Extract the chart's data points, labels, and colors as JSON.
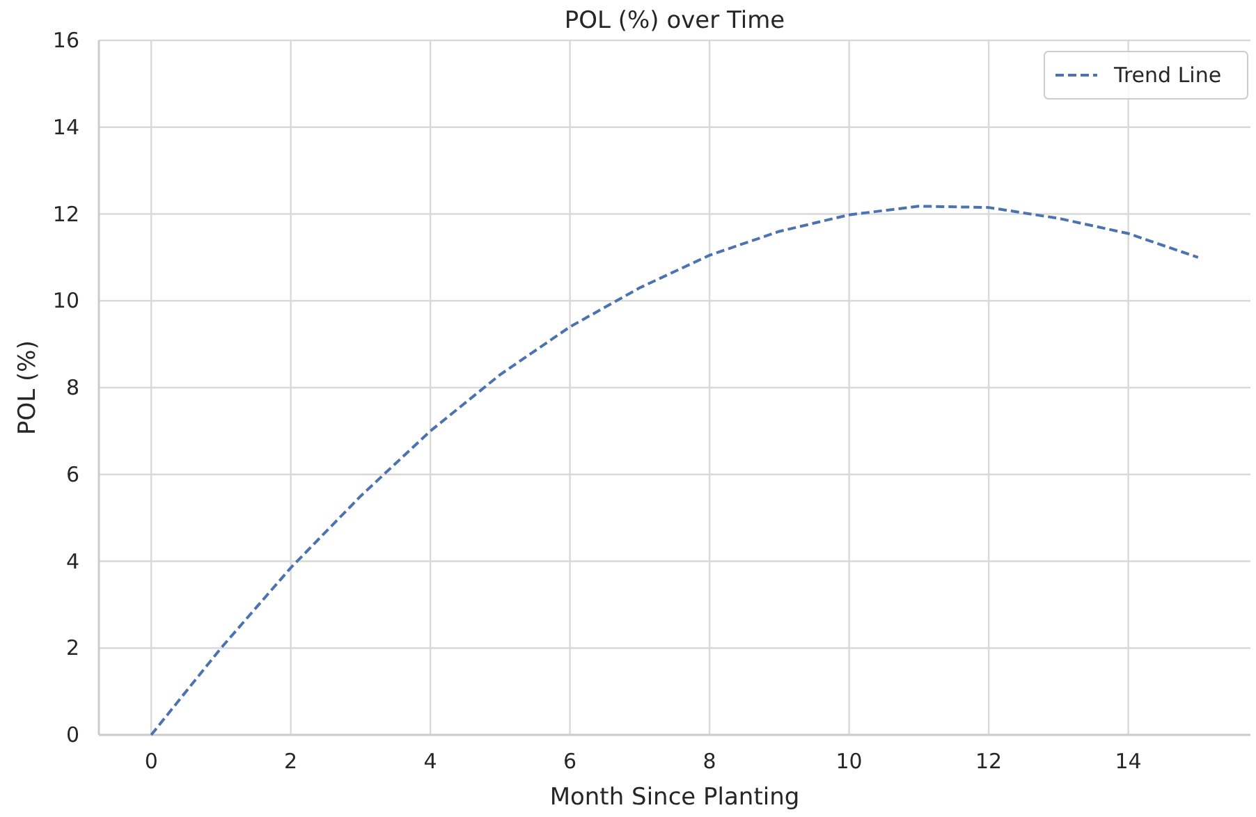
{
  "chart_data": {
    "type": "line",
    "title": "POL (%) over Time",
    "xlabel": "Month Since Planting",
    "ylabel": "POL (%)",
    "x": [
      0,
      1,
      2,
      3,
      4,
      5,
      6,
      7,
      8,
      9,
      10,
      11,
      12,
      13,
      14,
      15
    ],
    "series": [
      {
        "name": "Trend Line",
        "color": "#4c72b0",
        "line_style": "dashed",
        "values": [
          0,
          2.0,
          3.85,
          5.5,
          7.0,
          8.3,
          9.4,
          10.3,
          11.05,
          11.6,
          11.98,
          12.18,
          12.15,
          11.9,
          11.55,
          11.0
        ]
      }
    ],
    "xlim": [
      -0.75,
      15.75
    ],
    "xticks": [
      0,
      2,
      4,
      6,
      8,
      10,
      12,
      14
    ],
    "ylim": [
      0,
      16
    ],
    "yticks": [
      0,
      2,
      4,
      6,
      8,
      10,
      12,
      14,
      16
    ],
    "grid": true,
    "legend": "top right",
    "marker": "none"
  }
}
